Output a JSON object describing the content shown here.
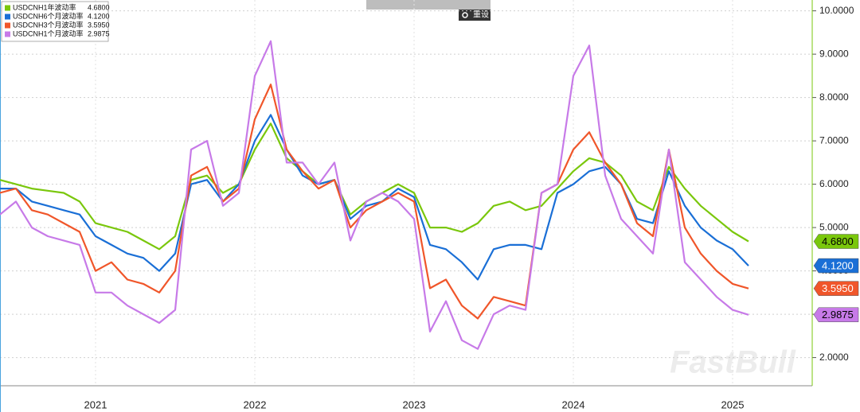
{
  "chart_data": {
    "type": "line",
    "x": [
      2020.9,
      2021.0,
      2021.1,
      2021.2,
      2021.3,
      2021.4,
      2021.5,
      2021.6,
      2021.7,
      2021.8,
      2021.9,
      2022.0,
      2022.1,
      2022.2,
      2022.3,
      2022.4,
      2022.5,
      2022.6,
      2022.7,
      2022.8,
      2022.9,
      2023.0,
      2023.1,
      2023.2,
      2023.3,
      2023.4,
      2023.5,
      2023.6,
      2023.7,
      2023.8,
      2023.9,
      2024.0,
      2024.1,
      2024.2,
      2024.3,
      2024.4,
      2024.5,
      2024.6,
      2024.7,
      2024.8,
      2024.9,
      2025.0,
      2025.1,
      2025.2,
      2025.3,
      2025.4,
      2025.5,
      2025.6
    ],
    "series": [
      {
        "name": "USDCNH1年波动率",
        "color": "#7ac70c",
        "label_text": "#000000",
        "values": [
          6.1,
          6.0,
          5.9,
          5.85,
          5.8,
          5.6,
          5.1,
          5.0,
          4.9,
          4.7,
          4.5,
          4.8,
          6.1,
          6.2,
          5.8,
          6.0,
          6.8,
          7.4,
          6.6,
          6.3,
          6.0,
          6.1,
          5.3,
          5.6,
          5.8,
          6.0,
          5.8,
          5.0,
          5.0,
          4.9,
          5.1,
          5.5,
          5.6,
          5.4,
          5.5,
          5.9,
          6.3,
          6.6,
          6.5,
          6.2,
          5.6,
          5.4,
          6.4,
          5.9,
          5.5,
          5.2,
          4.9,
          4.68
        ],
        "value_labels": [
          null,
          null,
          null,
          null,
          null,
          null,
          null,
          null,
          null,
          null,
          null,
          null,
          null,
          null,
          null,
          null,
          null,
          null,
          null,
          null,
          null,
          null,
          null,
          null,
          null,
          null,
          null,
          null,
          null,
          null,
          null,
          null,
          null,
          null,
          null,
          null,
          null,
          null,
          null,
          null,
          null,
          null,
          null,
          null,
          null,
          null,
          null,
          "4.6800"
        ]
      },
      {
        "name": "USDCNH6个月波动率",
        "color": "#1a6fd6",
        "label_text": "#ffffff",
        "values": [
          5.9,
          5.9,
          5.6,
          5.5,
          5.4,
          5.3,
          4.8,
          4.6,
          4.4,
          4.3,
          4.0,
          4.4,
          6.0,
          6.1,
          5.6,
          6.0,
          7.0,
          7.6,
          6.8,
          6.2,
          6.0,
          6.1,
          5.2,
          5.5,
          5.6,
          5.9,
          5.7,
          4.6,
          4.5,
          4.2,
          3.8,
          4.5,
          4.6,
          4.6,
          4.5,
          5.8,
          6.0,
          6.3,
          6.4,
          6.0,
          5.2,
          5.1,
          6.3,
          5.5,
          5.0,
          4.7,
          4.5,
          4.12
        ],
        "value_labels": [
          null,
          null,
          null,
          null,
          null,
          null,
          null,
          null,
          null,
          null,
          null,
          null,
          null,
          null,
          null,
          null,
          null,
          null,
          null,
          null,
          null,
          null,
          null,
          null,
          null,
          null,
          null,
          null,
          null,
          null,
          null,
          null,
          null,
          null,
          null,
          null,
          null,
          null,
          null,
          null,
          null,
          null,
          null,
          null,
          null,
          null,
          null,
          "4.1200"
        ]
      },
      {
        "name": "USDCNH3个月波动率",
        "color": "#f0562a",
        "label_text": "#ffffff",
        "values": [
          5.8,
          5.9,
          5.4,
          5.3,
          5.1,
          4.9,
          4.0,
          4.2,
          3.8,
          3.7,
          3.5,
          4.0,
          6.2,
          6.4,
          5.6,
          5.9,
          7.5,
          8.3,
          6.8,
          6.3,
          5.9,
          6.1,
          5.0,
          5.4,
          5.6,
          5.8,
          5.6,
          3.6,
          3.8,
          3.2,
          2.9,
          3.4,
          3.3,
          3.2,
          5.8,
          6.0,
          6.8,
          7.2,
          6.5,
          6.0,
          5.1,
          4.8,
          6.8,
          5.0,
          4.4,
          4.0,
          3.7,
          3.595
        ],
        "value_labels": [
          null,
          null,
          null,
          null,
          null,
          null,
          null,
          null,
          null,
          null,
          null,
          null,
          null,
          null,
          null,
          null,
          null,
          null,
          null,
          null,
          null,
          null,
          null,
          null,
          null,
          null,
          null,
          null,
          null,
          null,
          null,
          null,
          null,
          null,
          null,
          null,
          null,
          null,
          null,
          null,
          null,
          null,
          null,
          null,
          null,
          null,
          null,
          "3.5950"
        ]
      },
      {
        "name": "USDCNH1个月波动率",
        "color": "#c77ae8",
        "label_text": "#000000",
        "values": [
          5.3,
          5.6,
          5.0,
          4.8,
          4.7,
          4.6,
          3.5,
          3.5,
          3.2,
          3.0,
          2.8,
          3.1,
          6.8,
          7.0,
          5.5,
          5.8,
          8.5,
          9.3,
          6.5,
          6.5,
          6.0,
          6.5,
          4.7,
          5.6,
          5.8,
          5.6,
          5.2,
          2.6,
          3.3,
          2.4,
          2.2,
          3.0,
          3.2,
          3.1,
          5.8,
          6.0,
          8.5,
          9.2,
          6.2,
          5.2,
          4.8,
          4.4,
          6.8,
          4.2,
          3.8,
          3.4,
          3.1,
          2.9875
        ],
        "value_labels": [
          null,
          null,
          null,
          null,
          null,
          null,
          null,
          null,
          null,
          null,
          null,
          null,
          null,
          null,
          null,
          null,
          null,
          null,
          null,
          null,
          null,
          null,
          null,
          null,
          null,
          null,
          null,
          null,
          null,
          null,
          null,
          null,
          null,
          null,
          null,
          null,
          null,
          null,
          null,
          null,
          null,
          null,
          null,
          null,
          null,
          null,
          null,
          "2.9875"
        ]
      }
    ],
    "xlim": [
      2020.9,
      2026.0
    ],
    "xticks": [
      {
        "value": 2021.5,
        "label": "2021"
      },
      {
        "value": 2022.5,
        "label": "2022"
      },
      {
        "value": 2023.5,
        "label": "2023"
      },
      {
        "value": 2024.5,
        "label": "2024"
      },
      {
        "value": 2025.5,
        "label": "2025"
      }
    ],
    "ylim": [
      1.35,
      10.25
    ],
    "yticks": [
      {
        "value": 2,
        "label": "2.0000"
      },
      {
        "value": 3,
        "label": "3.0000"
      },
      {
        "value": 4,
        "label": "4.0000"
      },
      {
        "value": 5,
        "label": "5.0000"
      },
      {
        "value": 6,
        "label": "6.0000"
      },
      {
        "value": 7,
        "label": "7.0000"
      },
      {
        "value": 8,
        "label": "8.0000"
      },
      {
        "value": 9,
        "label": "9.0000"
      },
      {
        "value": 10,
        "label": "10.0000"
      }
    ],
    "grid": true,
    "legend": "top-left",
    "reset_button": "重设",
    "watermark": "FastBull"
  }
}
